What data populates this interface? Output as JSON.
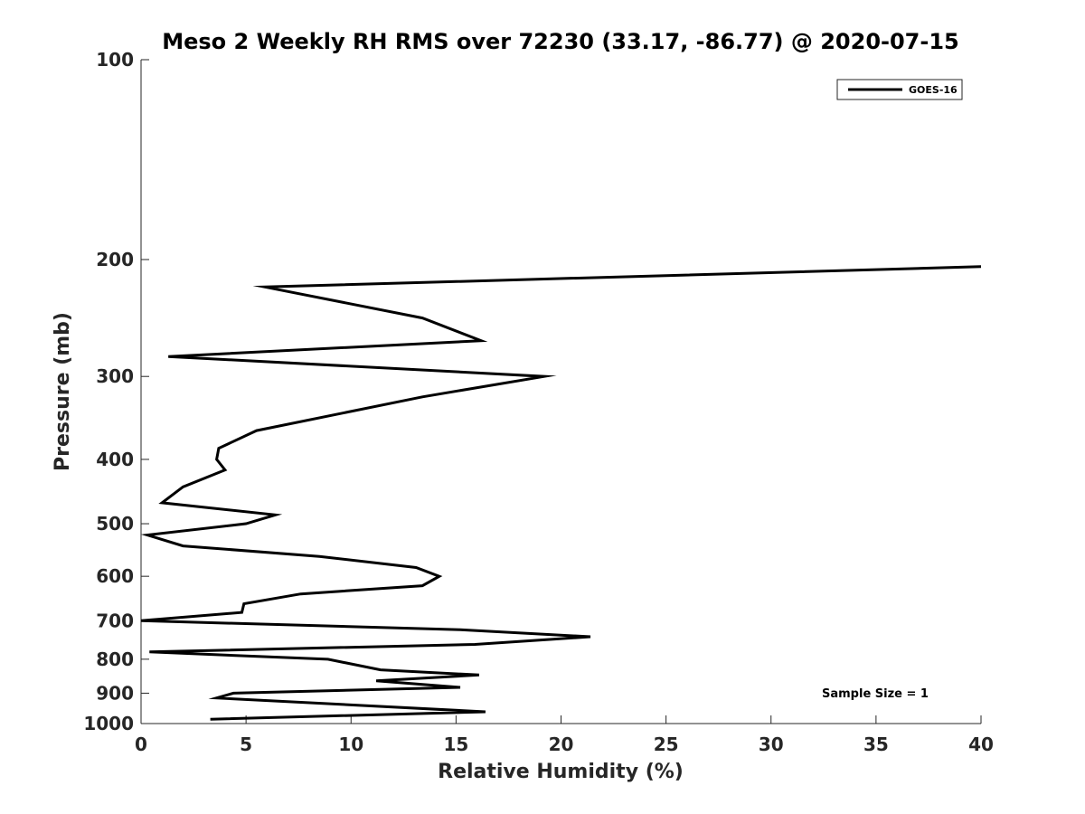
{
  "chart_data": {
    "type": "line",
    "title": "Meso 2 Weekly RH RMS over 72230 (33.17, -86.77) @ 2020-07-15",
    "xlabel": "Relative Humidity (%)",
    "ylabel": "Pressure (mb)",
    "xlim": [
      0,
      40
    ],
    "ylim": [
      100,
      1000
    ],
    "yscale": "log",
    "yreversed": true,
    "x_ticks": [
      "0",
      "5",
      "10",
      "15",
      "20",
      "25",
      "30",
      "35",
      "40"
    ],
    "y_ticks": [
      "100",
      "200",
      "300",
      "400",
      "500",
      "600",
      "700",
      "800",
      "900",
      "1000"
    ],
    "grid": false,
    "legend": {
      "position": "top-right",
      "entries": [
        "GOES-16"
      ]
    },
    "annotation": "Sample Size = 1",
    "series": [
      {
        "name": "GOES-16",
        "color": "#000000",
        "points": [
          {
            "x": 40.0,
            "p": 205
          },
          {
            "x": 5.9,
            "p": 220
          },
          {
            "x": 13.4,
            "p": 245
          },
          {
            "x": 16.2,
            "p": 265
          },
          {
            "x": 1.3,
            "p": 280
          },
          {
            "x": 19.2,
            "p": 300
          },
          {
            "x": 13.4,
            "p": 322
          },
          {
            "x": 5.5,
            "p": 362
          },
          {
            "x": 3.7,
            "p": 385
          },
          {
            "x": 3.6,
            "p": 400
          },
          {
            "x": 4.0,
            "p": 415
          },
          {
            "x": 2.0,
            "p": 440
          },
          {
            "x": 1.0,
            "p": 465
          },
          {
            "x": 6.4,
            "p": 485
          },
          {
            "x": 5.0,
            "p": 500
          },
          {
            "x": 0.3,
            "p": 520
          },
          {
            "x": 2.0,
            "p": 540
          },
          {
            "x": 8.5,
            "p": 560
          },
          {
            "x": 13.1,
            "p": 582
          },
          {
            "x": 14.2,
            "p": 600
          },
          {
            "x": 13.4,
            "p": 620
          },
          {
            "x": 7.6,
            "p": 638
          },
          {
            "x": 4.9,
            "p": 660
          },
          {
            "x": 4.8,
            "p": 680
          },
          {
            "x": 0.0,
            "p": 700
          },
          {
            "x": 15.2,
            "p": 722
          },
          {
            "x": 21.4,
            "p": 740
          },
          {
            "x": 15.9,
            "p": 760
          },
          {
            "x": 0.4,
            "p": 780
          },
          {
            "x": 8.9,
            "p": 800
          },
          {
            "x": 11.4,
            "p": 830
          },
          {
            "x": 16.1,
            "p": 845
          },
          {
            "x": 11.2,
            "p": 862
          },
          {
            "x": 15.2,
            "p": 882
          },
          {
            "x": 4.4,
            "p": 900
          },
          {
            "x": 3.6,
            "p": 915
          },
          {
            "x": 16.4,
            "p": 960
          },
          {
            "x": 3.3,
            "p": 985
          }
        ]
      }
    ]
  }
}
